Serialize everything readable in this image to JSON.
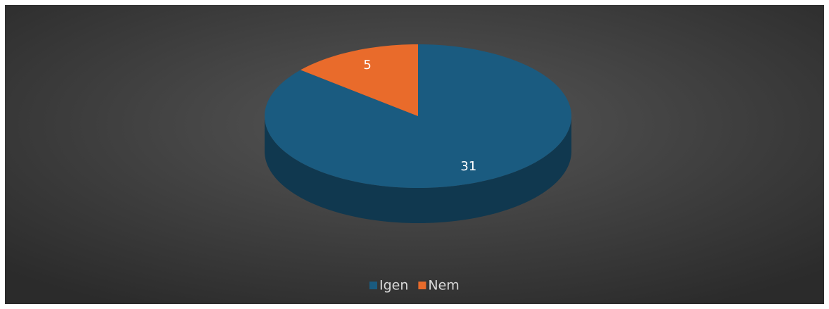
{
  "chart_data": {
    "type": "pie",
    "categories": [
      "Igen",
      "Nem"
    ],
    "values": [
      31,
      5
    ],
    "colors": [
      "#1a5b80",
      "#e96b2b"
    ],
    "legend": "bottom"
  }
}
